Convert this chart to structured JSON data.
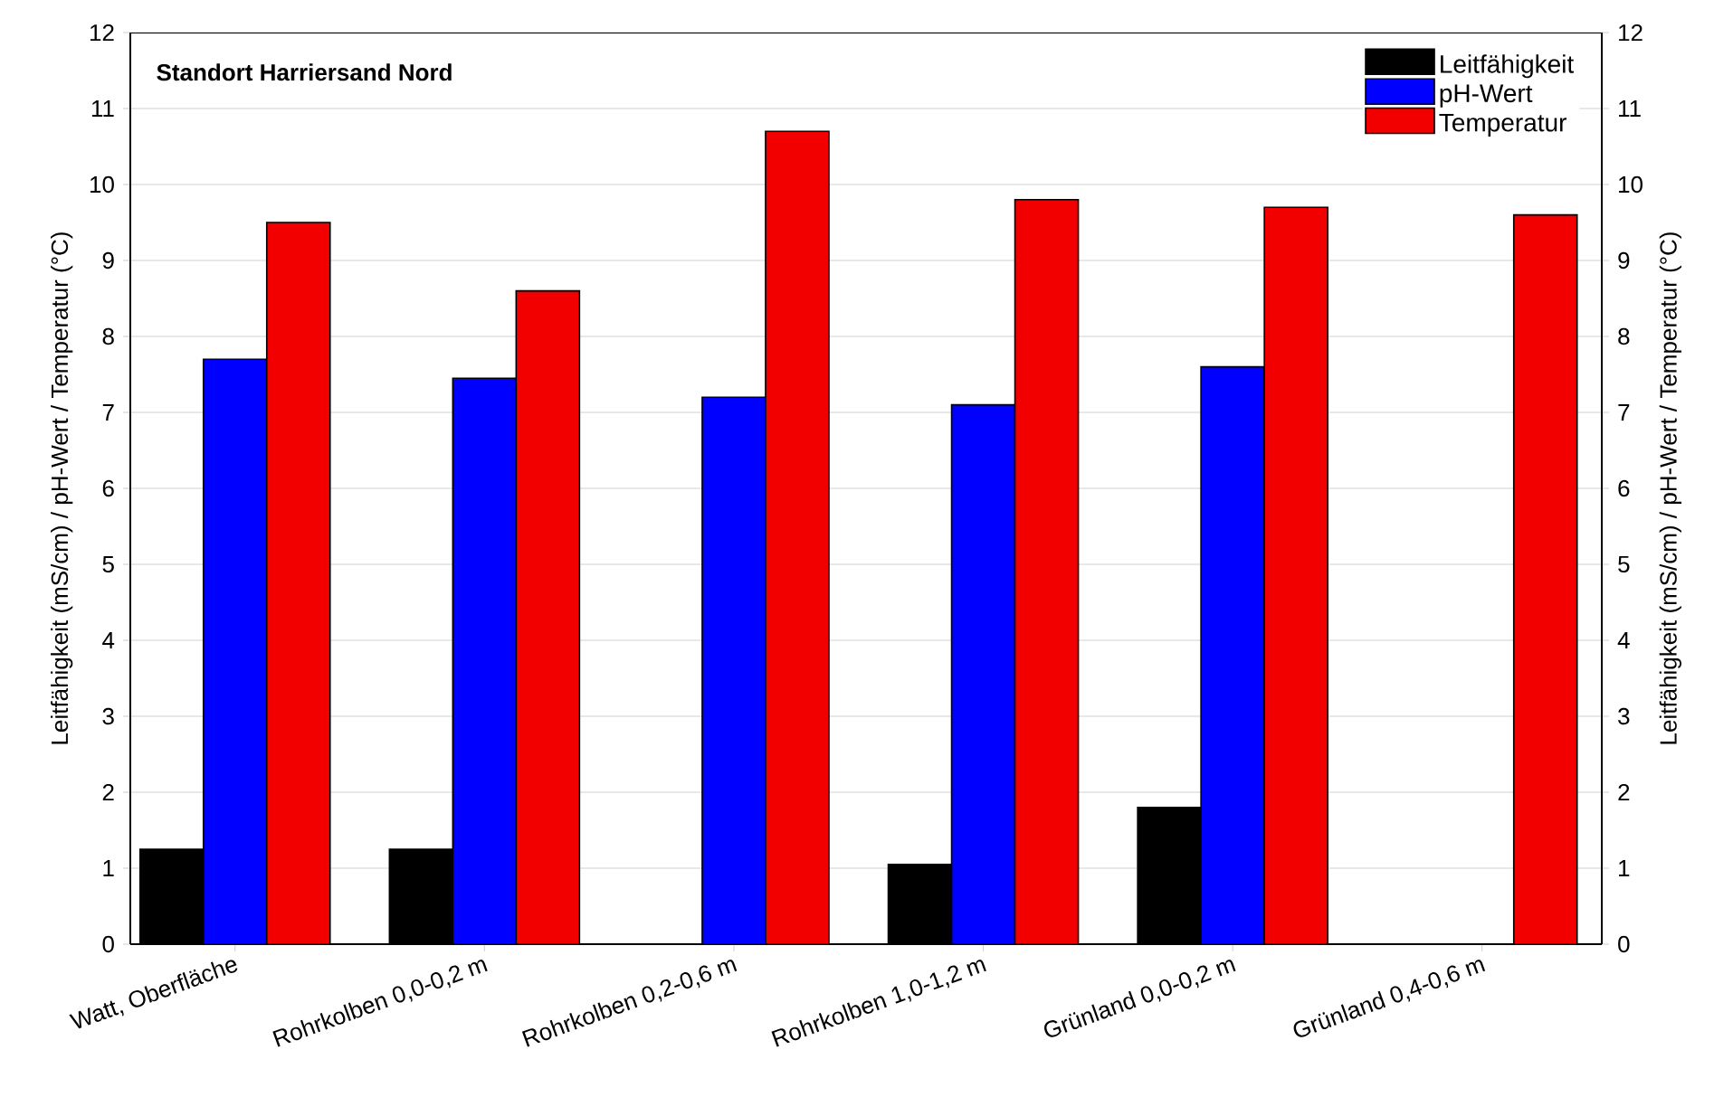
{
  "chart_data": {
    "type": "bar",
    "title": "Standort Harriersand Nord",
    "categories": [
      "Watt, Oberfläche",
      "Rohrkolben 0,0-0,2 m",
      "Rohrkolben 0,2-0,6 m",
      "Rohrkolben 1,0-1,2 m",
      "Grünland 0,0-0,2 m",
      "Grünland 0,4-0,6 m"
    ],
    "series": [
      {
        "name": "Leitfähigkeit",
        "color": "#000000",
        "values": [
          1.25,
          1.25,
          null,
          1.05,
          1.8,
          null
        ]
      },
      {
        "name": "pH-Wert",
        "color": "#0000ff",
        "values": [
          7.7,
          7.45,
          7.2,
          7.1,
          7.6,
          null
        ]
      },
      {
        "name": "Temperatur",
        "color": "#f20000",
        "values": [
          9.5,
          8.6,
          10.7,
          9.8,
          9.7,
          9.6
        ]
      }
    ],
    "ylabel": "Leitfähigkeit (mS/cm) / pH-Wert / Temperatur (°C)",
    "y2label": "Leitfähigkeit (mS/cm) / pH-Wert / Temperatur (°C)",
    "ylim": [
      0,
      12
    ],
    "yticks": [
      0,
      1,
      2,
      3,
      4,
      5,
      6,
      7,
      8,
      9,
      10,
      11,
      12
    ],
    "y2lim": [
      0,
      12
    ],
    "y2ticks": [
      0,
      1,
      2,
      3,
      4,
      5,
      6,
      7,
      8,
      9,
      10,
      11,
      12
    ],
    "grid": "y",
    "legend": "top right"
  }
}
